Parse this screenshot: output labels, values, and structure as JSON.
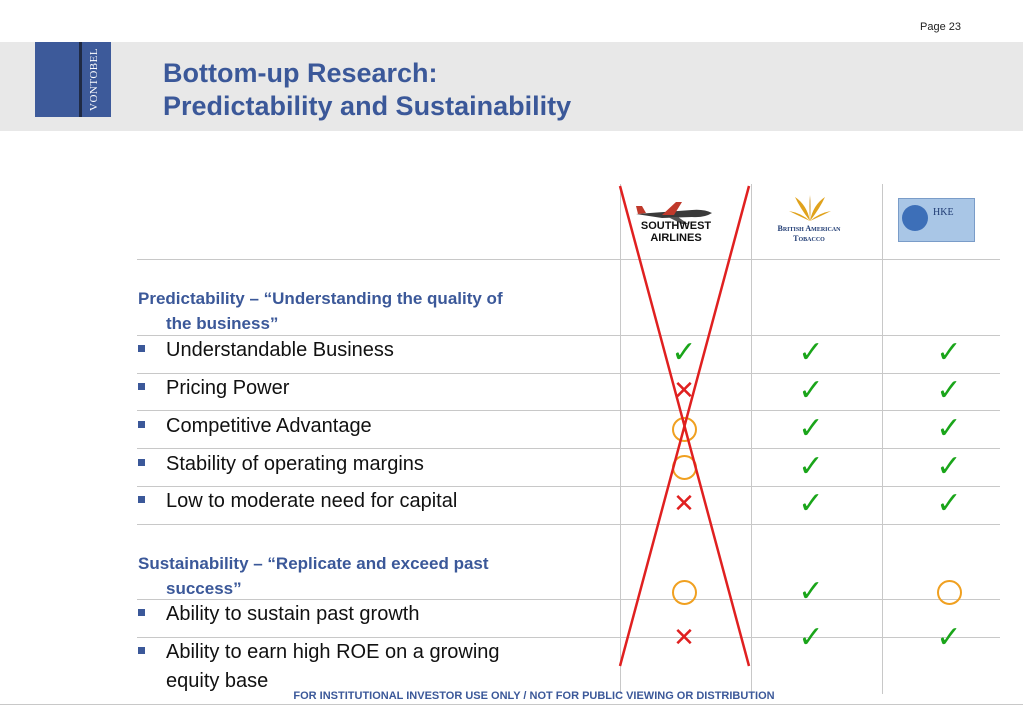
{
  "page": {
    "number": "Page 23"
  },
  "brand": {
    "name": "VONTOBEL",
    "logo_color": "#3d5a9a"
  },
  "title": {
    "line1": "Bottom-up Research:",
    "line2": "Predictability and Sustainability"
  },
  "companies": [
    {
      "id": "southwest",
      "name_line1": "SOUTHWEST",
      "name_line2": "AIRLINES",
      "crossed_out": true
    },
    {
      "id": "bat",
      "name_line1": "British American",
      "name_line2": "Tobacco"
    },
    {
      "id": "hke",
      "name": "HKE"
    }
  ],
  "sections": [
    {
      "heading_line1": "Predictability – “Understanding the quality of",
      "heading_line2": "the business”",
      "items": [
        {
          "label": "Understandable Business",
          "marks": [
            "check",
            "check",
            "check"
          ]
        },
        {
          "label": "Pricing Power",
          "marks": [
            "cross",
            "check",
            "check"
          ]
        },
        {
          "label": "Competitive Advantage",
          "marks": [
            "circle",
            "check",
            "check"
          ]
        },
        {
          "label": "Stability of operating margins",
          "marks": [
            "circle",
            "check",
            "check"
          ]
        },
        {
          "label": "Low to moderate need for capital",
          "marks": [
            "cross",
            "check",
            "check"
          ]
        }
      ]
    },
    {
      "heading_line1": "Sustainability – “Replicate and exceed past",
      "heading_line2": "success”",
      "items": [
        {
          "label": "Ability to sustain past growth",
          "marks": [
            "circle",
            "check",
            "circle"
          ]
        },
        {
          "label": "Ability to earn high ROE on a growing",
          "label_line2": "equity base",
          "marks": [
            "cross",
            "check",
            "check"
          ]
        }
      ]
    }
  ],
  "symbols": {
    "check": "✓",
    "cross": "✕"
  },
  "colors": {
    "title": "#3b5899",
    "check": "#1aa51a",
    "cross": "#e02020",
    "circle": "#f0a020",
    "header_band": "#e8e8e8"
  },
  "footer": {
    "text": "FOR INSTITUTIONAL INVESTOR USE ONLY / NOT FOR PUBLIC VIEWING OR DISTRIBUTION"
  }
}
